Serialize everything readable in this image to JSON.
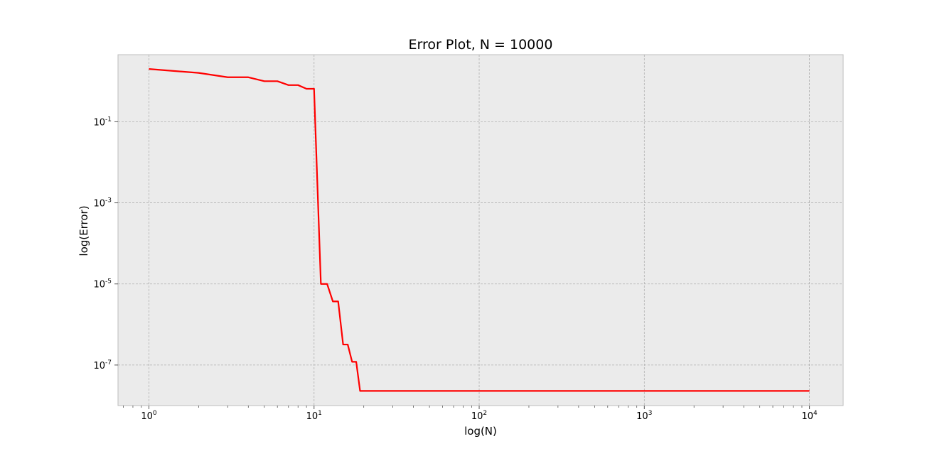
{
  "chart_data": {
    "type": "line",
    "title": "Error Plot, N = 10000",
    "xlabel": "log(N)",
    "ylabel": "log(Error)",
    "x_scale": "log",
    "y_scale": "log",
    "xlim": [
      0.65,
      16000
    ],
    "ylim": [
      1e-08,
      4.5
    ],
    "grid": true,
    "background": "#ebebeb",
    "x_ticks": [
      {
        "base": "10",
        "exp": "0",
        "value": 1
      },
      {
        "base": "10",
        "exp": "1",
        "value": 10
      },
      {
        "base": "10",
        "exp": "2",
        "value": 100
      },
      {
        "base": "10",
        "exp": "3",
        "value": 1000
      },
      {
        "base": "10",
        "exp": "4",
        "value": 10000
      }
    ],
    "y_ticks": [
      {
        "base": "10",
        "exp": "-1",
        "value": 0.1
      },
      {
        "base": "10",
        "exp": "-3",
        "value": 0.001
      },
      {
        "base": "10",
        "exp": "-5",
        "value": 1e-05
      },
      {
        "base": "10",
        "exp": "-7",
        "value": 1e-07
      }
    ],
    "series": [
      {
        "color": "#ff0000",
        "points": [
          [
            1,
            2.0
          ],
          [
            2,
            1.6
          ],
          [
            3,
            1.25
          ],
          [
            4,
            1.25
          ],
          [
            5,
            1.0
          ],
          [
            6,
            1.0
          ],
          [
            7,
            0.8
          ],
          [
            8,
            0.8
          ],
          [
            9,
            0.65
          ],
          [
            10,
            0.65
          ],
          [
            11,
            1e-05
          ],
          [
            12,
            1e-05
          ],
          [
            13,
            3.7e-06
          ],
          [
            14,
            3.7e-06
          ],
          [
            15,
            3.2e-07
          ],
          [
            16,
            3.2e-07
          ],
          [
            17,
            1.2e-07
          ],
          [
            18,
            1.2e-07
          ],
          [
            19,
            2.3e-08
          ],
          [
            20,
            2.3e-08
          ],
          [
            100,
            2.3e-08
          ],
          [
            1000,
            2.3e-08
          ],
          [
            10000,
            2.3e-08
          ]
        ]
      }
    ]
  }
}
